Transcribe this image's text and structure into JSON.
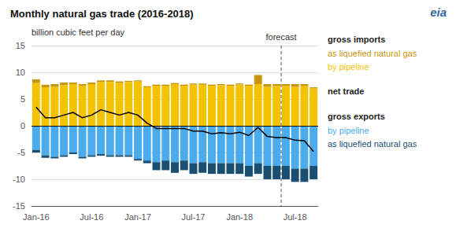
{
  "chart_data": {
    "type": "bar",
    "title": "Monthly natural gas trade (2016-2018)",
    "y_label": "billion cubic feet per day",
    "logo_text": "eia",
    "forecast_label": "forecast",
    "forecast_start": 27,
    "categories": [
      "Jan-16",
      null,
      null,
      null,
      null,
      null,
      "Jul-16",
      null,
      null,
      null,
      null,
      "Jan-17",
      null,
      null,
      null,
      null,
      null,
      "Jul-17",
      null,
      null,
      null,
      null,
      "Jan-18",
      null,
      null,
      null,
      null,
      null,
      "Jul-18",
      null,
      null
    ],
    "ylim": [
      -15,
      15
    ],
    "yticks": [
      -15,
      -10,
      -5,
      0,
      5,
      10,
      15
    ],
    "grid": true,
    "stacked": true,
    "legend": "right",
    "legend_groups": [
      "gross imports",
      "net trade",
      "gross exports"
    ],
    "series": [
      {
        "name": "by pipeline",
        "group": "gross imports",
        "type": "bar",
        "color": "#F5C200",
        "values": [
          8.0,
          7.2,
          7.3,
          7.6,
          7.8,
          7.5,
          7.8,
          8.2,
          8.2,
          8.0,
          8.2,
          8.3,
          7.2,
          7.5,
          7.5,
          7.8,
          7.5,
          7.7,
          7.7,
          7.5,
          7.6,
          7.5,
          7.7,
          7.5,
          7.8,
          7.3,
          7.5,
          7.5,
          7.3,
          7.5,
          7.0
        ]
      },
      {
        "name": "as liquefied natural gas",
        "group": "gross imports",
        "type": "bar",
        "color": "#C8960C",
        "values": [
          0.7,
          0.5,
          0.5,
          0.5,
          0.3,
          0.3,
          0.3,
          0.3,
          0.3,
          0.3,
          0.2,
          0.2,
          0.2,
          0.2,
          0.2,
          0.2,
          0.2,
          0.2,
          0.2,
          0.2,
          0.2,
          0.2,
          0.2,
          0.2,
          1.7,
          0.5,
          0.3,
          0.3,
          0.5,
          0.3,
          0.2
        ]
      },
      {
        "name": "by pipeline",
        "group": "gross exports",
        "type": "bar",
        "color": "#4AACED",
        "values": [
          -4.5,
          -5.5,
          -5.8,
          -5.5,
          -5.0,
          -5.8,
          -5.5,
          -5.3,
          -5.5,
          -5.5,
          -5.5,
          -6.2,
          -6.5,
          -6.8,
          -6.5,
          -6.8,
          -6.5,
          -7.0,
          -6.8,
          -7.0,
          -7.0,
          -7.0,
          -7.0,
          -7.5,
          -7.0,
          -7.5,
          -7.5,
          -7.5,
          -8.0,
          -8.0,
          -7.5
        ]
      },
      {
        "name": "as liquefied natural gas",
        "group": "gross exports",
        "type": "bar",
        "color": "#1B4F72",
        "values": [
          -0.5,
          -0.5,
          -0.3,
          -0.3,
          -0.3,
          -0.3,
          -0.3,
          -0.3,
          -0.3,
          -0.3,
          -0.3,
          -0.3,
          -0.5,
          -1.5,
          -1.8,
          -2.0,
          -1.8,
          -2.0,
          -2.0,
          -2.0,
          -2.0,
          -2.0,
          -2.0,
          -2.0,
          -2.0,
          -2.5,
          -2.5,
          -2.5,
          -2.5,
          -2.5,
          -2.5
        ]
      },
      {
        "name": "net trade",
        "group": "net trade",
        "type": "line",
        "color": "#000000",
        "values": [
          3.5,
          1.5,
          1.5,
          2.0,
          2.5,
          1.5,
          2.0,
          3.0,
          2.5,
          2.0,
          2.5,
          2.0,
          0.5,
          -0.5,
          -0.5,
          -0.5,
          -0.5,
          -1.0,
          -1.0,
          -1.5,
          -1.3,
          -1.5,
          -1.2,
          -1.8,
          -0.3,
          -2.0,
          -2.2,
          -2.2,
          -2.7,
          -2.8,
          -4.8
        ]
      }
    ]
  }
}
